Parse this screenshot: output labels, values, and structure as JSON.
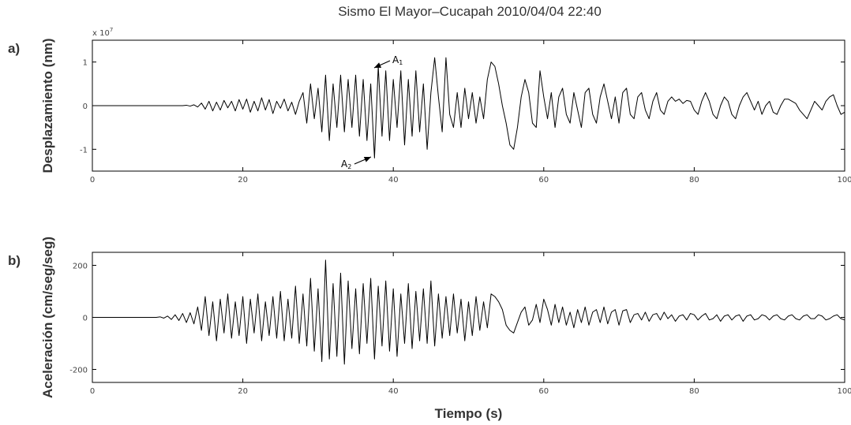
{
  "chart_data": [
    {
      "type": "line",
      "title": "Sismo El Mayor–Cucapah 2010/04/04 22:40",
      "panel_label": "a)",
      "y_label": "Desplazamiento (nm)",
      "y_multiplier": {
        "base": "x 10",
        "exponent": "7"
      },
      "annotations": [
        {
          "text": "A",
          "subscript": "1"
        },
        {
          "text": "A",
          "subscript": "2"
        }
      ],
      "xlim": [
        0,
        100
      ],
      "xticks": [
        0,
        20,
        40,
        60,
        80,
        100
      ],
      "ylim": [
        -1.5,
        1.5
      ],
      "yticks": [
        -1,
        0,
        1
      ],
      "color": "#000000",
      "x": [
        0,
        0.5,
        1,
        1.5,
        2,
        2.5,
        3,
        3.5,
        4,
        4.5,
        5,
        5.5,
        6,
        6.5,
        7,
        7.5,
        8,
        8.5,
        9,
        9.5,
        10,
        10.5,
        11,
        11.5,
        12,
        12.5,
        13,
        13.5,
        14,
        14.5,
        15,
        15.5,
        16,
        16.5,
        17,
        17.5,
        18,
        18.5,
        19,
        19.5,
        20,
        20.5,
        21,
        21.5,
        22,
        22.5,
        23,
        23.5,
        24,
        24.5,
        25,
        25.5,
        26,
        26.5,
        27,
        27.5,
        28,
        28.5,
        29,
        29.5,
        30,
        30.5,
        31,
        31.5,
        32,
        32.5,
        33,
        33.5,
        34,
        34.5,
        35,
        35.5,
        36,
        36.5,
        37,
        37.5,
        38,
        38.5,
        39,
        39.5,
        40,
        40.5,
        41,
        41.5,
        42,
        42.5,
        43,
        43.5,
        44,
        44.5,
        45,
        45.5,
        46,
        46.5,
        47,
        47.5,
        48,
        48.5,
        49,
        49.5,
        50,
        50.5,
        51,
        51.5,
        52,
        52.5,
        53,
        53.5,
        54,
        54.5,
        55,
        55.5,
        56,
        56.5,
        57,
        57.5,
        58,
        58.5,
        59,
        59.5,
        60,
        60.5,
        61,
        61.5,
        62,
        62.5,
        63,
        63.5,
        64,
        64.5,
        65,
        65.5,
        66,
        66.5,
        67,
        67.5,
        68,
        68.5,
        69,
        69.5,
        70,
        70.5,
        71,
        71.5,
        72,
        72.5,
        73,
        73.5,
        74,
        74.5,
        75,
        75.5,
        76,
        76.5,
        77,
        77.5,
        78,
        78.5,
        79,
        79.5,
        80,
        80.5,
        81,
        81.5,
        82,
        82.5,
        83,
        83.5,
        84,
        84.5,
        85,
        85.5,
        86,
        86.5,
        87,
        87.5,
        88,
        88.5,
        89,
        89.5,
        90,
        90.5,
        91,
        91.5,
        92,
        92.5,
        93,
        93.5,
        94,
        94.5,
        95,
        95.5,
        96,
        96.5,
        97,
        97.5,
        98,
        98.5,
        99,
        99.5,
        100
      ],
      "values": [
        0,
        0,
        0,
        0,
        0,
        0,
        0,
        0,
        0,
        0,
        0,
        0,
        0,
        0,
        0,
        0,
        0,
        0,
        0,
        0,
        0,
        0,
        0,
        0,
        0,
        0.01,
        -0.01,
        0.02,
        -0.03,
        0.06,
        -0.08,
        0.1,
        -0.12,
        0.08,
        -0.1,
        0.12,
        -0.05,
        0.1,
        -0.12,
        0.14,
        -0.08,
        0.15,
        -0.15,
        0.1,
        -0.12,
        0.18,
        -0.1,
        0.14,
        -0.18,
        0.1,
        -0.06,
        0.15,
        -0.12,
        0.08,
        -0.2,
        0.1,
        0.3,
        -0.4,
        0.5,
        -0.3,
        0.4,
        -0.6,
        0.7,
        -0.8,
        0.5,
        -0.5,
        0.7,
        -0.6,
        0.6,
        -0.5,
        0.7,
        -0.7,
        0.6,
        -0.8,
        0.5,
        -1.2,
        0.9,
        -0.7,
        0.8,
        -0.8,
        0.6,
        -0.5,
        0.8,
        -0.9,
        0.6,
        -0.7,
        0.8,
        -0.6,
        0.5,
        -1.0,
        0.3,
        1.1,
        0.2,
        -0.6,
        1.1,
        -0.2,
        -0.5,
        0.3,
        -0.5,
        0.4,
        -0.3,
        0.3,
        -0.4,
        0.2,
        -0.3,
        0.6,
        1.0,
        0.9,
        0.5,
        0,
        -0.4,
        -0.9,
        -1.0,
        -0.5,
        0.2,
        0.6,
        0.3,
        -0.4,
        -0.5,
        0.8,
        0.2,
        -0.3,
        0.3,
        -0.5,
        0.2,
        0.4,
        -0.2,
        -0.4,
        0.3,
        -0.1,
        -0.5,
        0.3,
        0.4,
        -0.2,
        -0.4,
        0.2,
        0.5,
        0.1,
        -0.3,
        0.2,
        -0.4,
        0.3,
        0.4,
        -0.2,
        -0.3,
        0.2,
        0.3,
        -0.1,
        -0.3,
        0.1,
        0.3,
        -0.1,
        -0.2,
        0.1,
        0.2,
        0.1,
        0.15,
        0.05,
        0.12,
        0.1,
        -0.1,
        -0.2,
        0.1,
        0.3,
        0.1,
        -0.2,
        -0.3,
        0,
        0.2,
        0.1,
        -0.2,
        -0.3,
        0,
        0.2,
        0.3,
        0.1,
        -0.1,
        0.1,
        -0.2,
        0,
        0.1,
        -0.15,
        -0.2,
        0,
        0.15,
        0.15,
        0.1,
        0.05,
        -0.1,
        -0.2,
        -0.3,
        -0.1,
        0.1,
        0,
        -0.1,
        0.1,
        0.2,
        0.25,
        0,
        -0.2,
        -0.15
      ]
    },
    {
      "type": "line",
      "panel_label": "b)",
      "y_label": "Aceleración (cm/seg/seg)",
      "x_label": "Tiempo (s)",
      "xlim": [
        0,
        100
      ],
      "xticks": [
        0,
        20,
        40,
        60,
        80,
        100
      ],
      "ylim": [
        -250,
        250
      ],
      "yticks": [
        -200,
        0,
        200
      ],
      "color": "#000000",
      "x": [
        0,
        0.5,
        1,
        1.5,
        2,
        2.5,
        3,
        3.5,
        4,
        4.5,
        5,
        5.5,
        6,
        6.5,
        7,
        7.5,
        8,
        8.5,
        9,
        9.5,
        10,
        10.5,
        11,
        11.5,
        12,
        12.5,
        13,
        13.5,
        14,
        14.5,
        15,
        15.5,
        16,
        16.5,
        17,
        17.5,
        18,
        18.5,
        19,
        19.5,
        20,
        20.5,
        21,
        21.5,
        22,
        22.5,
        23,
        23.5,
        24,
        24.5,
        25,
        25.5,
        26,
        26.5,
        27,
        27.5,
        28,
        28.5,
        29,
        29.5,
        30,
        30.5,
        31,
        31.5,
        32,
        32.5,
        33,
        33.5,
        34,
        34.5,
        35,
        35.5,
        36,
        36.5,
        37,
        37.5,
        38,
        38.5,
        39,
        39.5,
        40,
        40.5,
        41,
        41.5,
        42,
        42.5,
        43,
        43.5,
        44,
        44.5,
        45,
        45.5,
        46,
        46.5,
        47,
        47.5,
        48,
        48.5,
        49,
        49.5,
        50,
        50.5,
        51,
        51.5,
        52,
        52.5,
        53,
        53.5,
        54,
        54.5,
        55,
        55.5,
        56,
        56.5,
        57,
        57.5,
        58,
        58.5,
        59,
        59.5,
        60,
        60.5,
        61,
        61.5,
        62,
        62.5,
        63,
        63.5,
        64,
        64.5,
        65,
        65.5,
        66,
        66.5,
        67,
        67.5,
        68,
        68.5,
        69,
        69.5,
        70,
        70.5,
        71,
        71.5,
        72,
        72.5,
        73,
        73.5,
        74,
        74.5,
        75,
        75.5,
        76,
        76.5,
        77,
        77.5,
        78,
        78.5,
        79,
        79.5,
        80,
        80.5,
        81,
        81.5,
        82,
        82.5,
        83,
        83.5,
        84,
        84.5,
        85,
        85.5,
        86,
        86.5,
        87,
        87.5,
        88,
        88.5,
        89,
        89.5,
        90,
        90.5,
        91,
        91.5,
        92,
        92.5,
        93,
        93.5,
        94,
        94.5,
        95,
        95.5,
        96,
        96.5,
        97,
        97.5,
        98,
        98.5,
        99,
        99.5,
        100
      ],
      "values": [
        0,
        0,
        0,
        0,
        0,
        0,
        0,
        0,
        0,
        0,
        0,
        0,
        0,
        0,
        0,
        0,
        0,
        0,
        2,
        -3,
        5,
        -8,
        10,
        -12,
        15,
        -20,
        18,
        -25,
        40,
        -50,
        80,
        -70,
        60,
        -90,
        70,
        -60,
        90,
        -80,
        60,
        -70,
        80,
        -100,
        70,
        -60,
        90,
        -90,
        60,
        -70,
        80,
        -80,
        100,
        -90,
        70,
        -80,
        120,
        -100,
        90,
        -110,
        150,
        -130,
        110,
        -170,
        220,
        -160,
        130,
        -150,
        170,
        -180,
        140,
        -120,
        110,
        -140,
        130,
        -100,
        150,
        -160,
        120,
        -110,
        140,
        -130,
        110,
        -150,
        90,
        -100,
        130,
        -120,
        100,
        -90,
        110,
        -100,
        140,
        -110,
        90,
        -80,
        80,
        -70,
        90,
        -60,
        70,
        -90,
        60,
        -70,
        80,
        -50,
        60,
        -40,
        90,
        80,
        60,
        30,
        -30,
        -50,
        -60,
        -20,
        20,
        40,
        -30,
        -10,
        50,
        -20,
        70,
        30,
        -30,
        50,
        -20,
        40,
        -30,
        20,
        -40,
        30,
        -20,
        40,
        -30,
        20,
        30,
        -20,
        40,
        -25,
        20,
        30,
        -30,
        25,
        30,
        -20,
        10,
        15,
        -10,
        20,
        -15,
        10,
        15,
        -10,
        20,
        -5,
        10,
        -15,
        5,
        10,
        -10,
        15,
        10,
        -10,
        5,
        15,
        -10,
        -5,
        10,
        -15,
        5,
        10,
        -10,
        5,
        10,
        -15,
        5,
        10,
        -10,
        -5,
        10,
        5,
        -10,
        5,
        10,
        -5,
        -10,
        5,
        10,
        -5,
        -10,
        5,
        10,
        -5,
        -5,
        10,
        5,
        -10,
        -5,
        5,
        10,
        -5,
        -10
      ]
    }
  ]
}
